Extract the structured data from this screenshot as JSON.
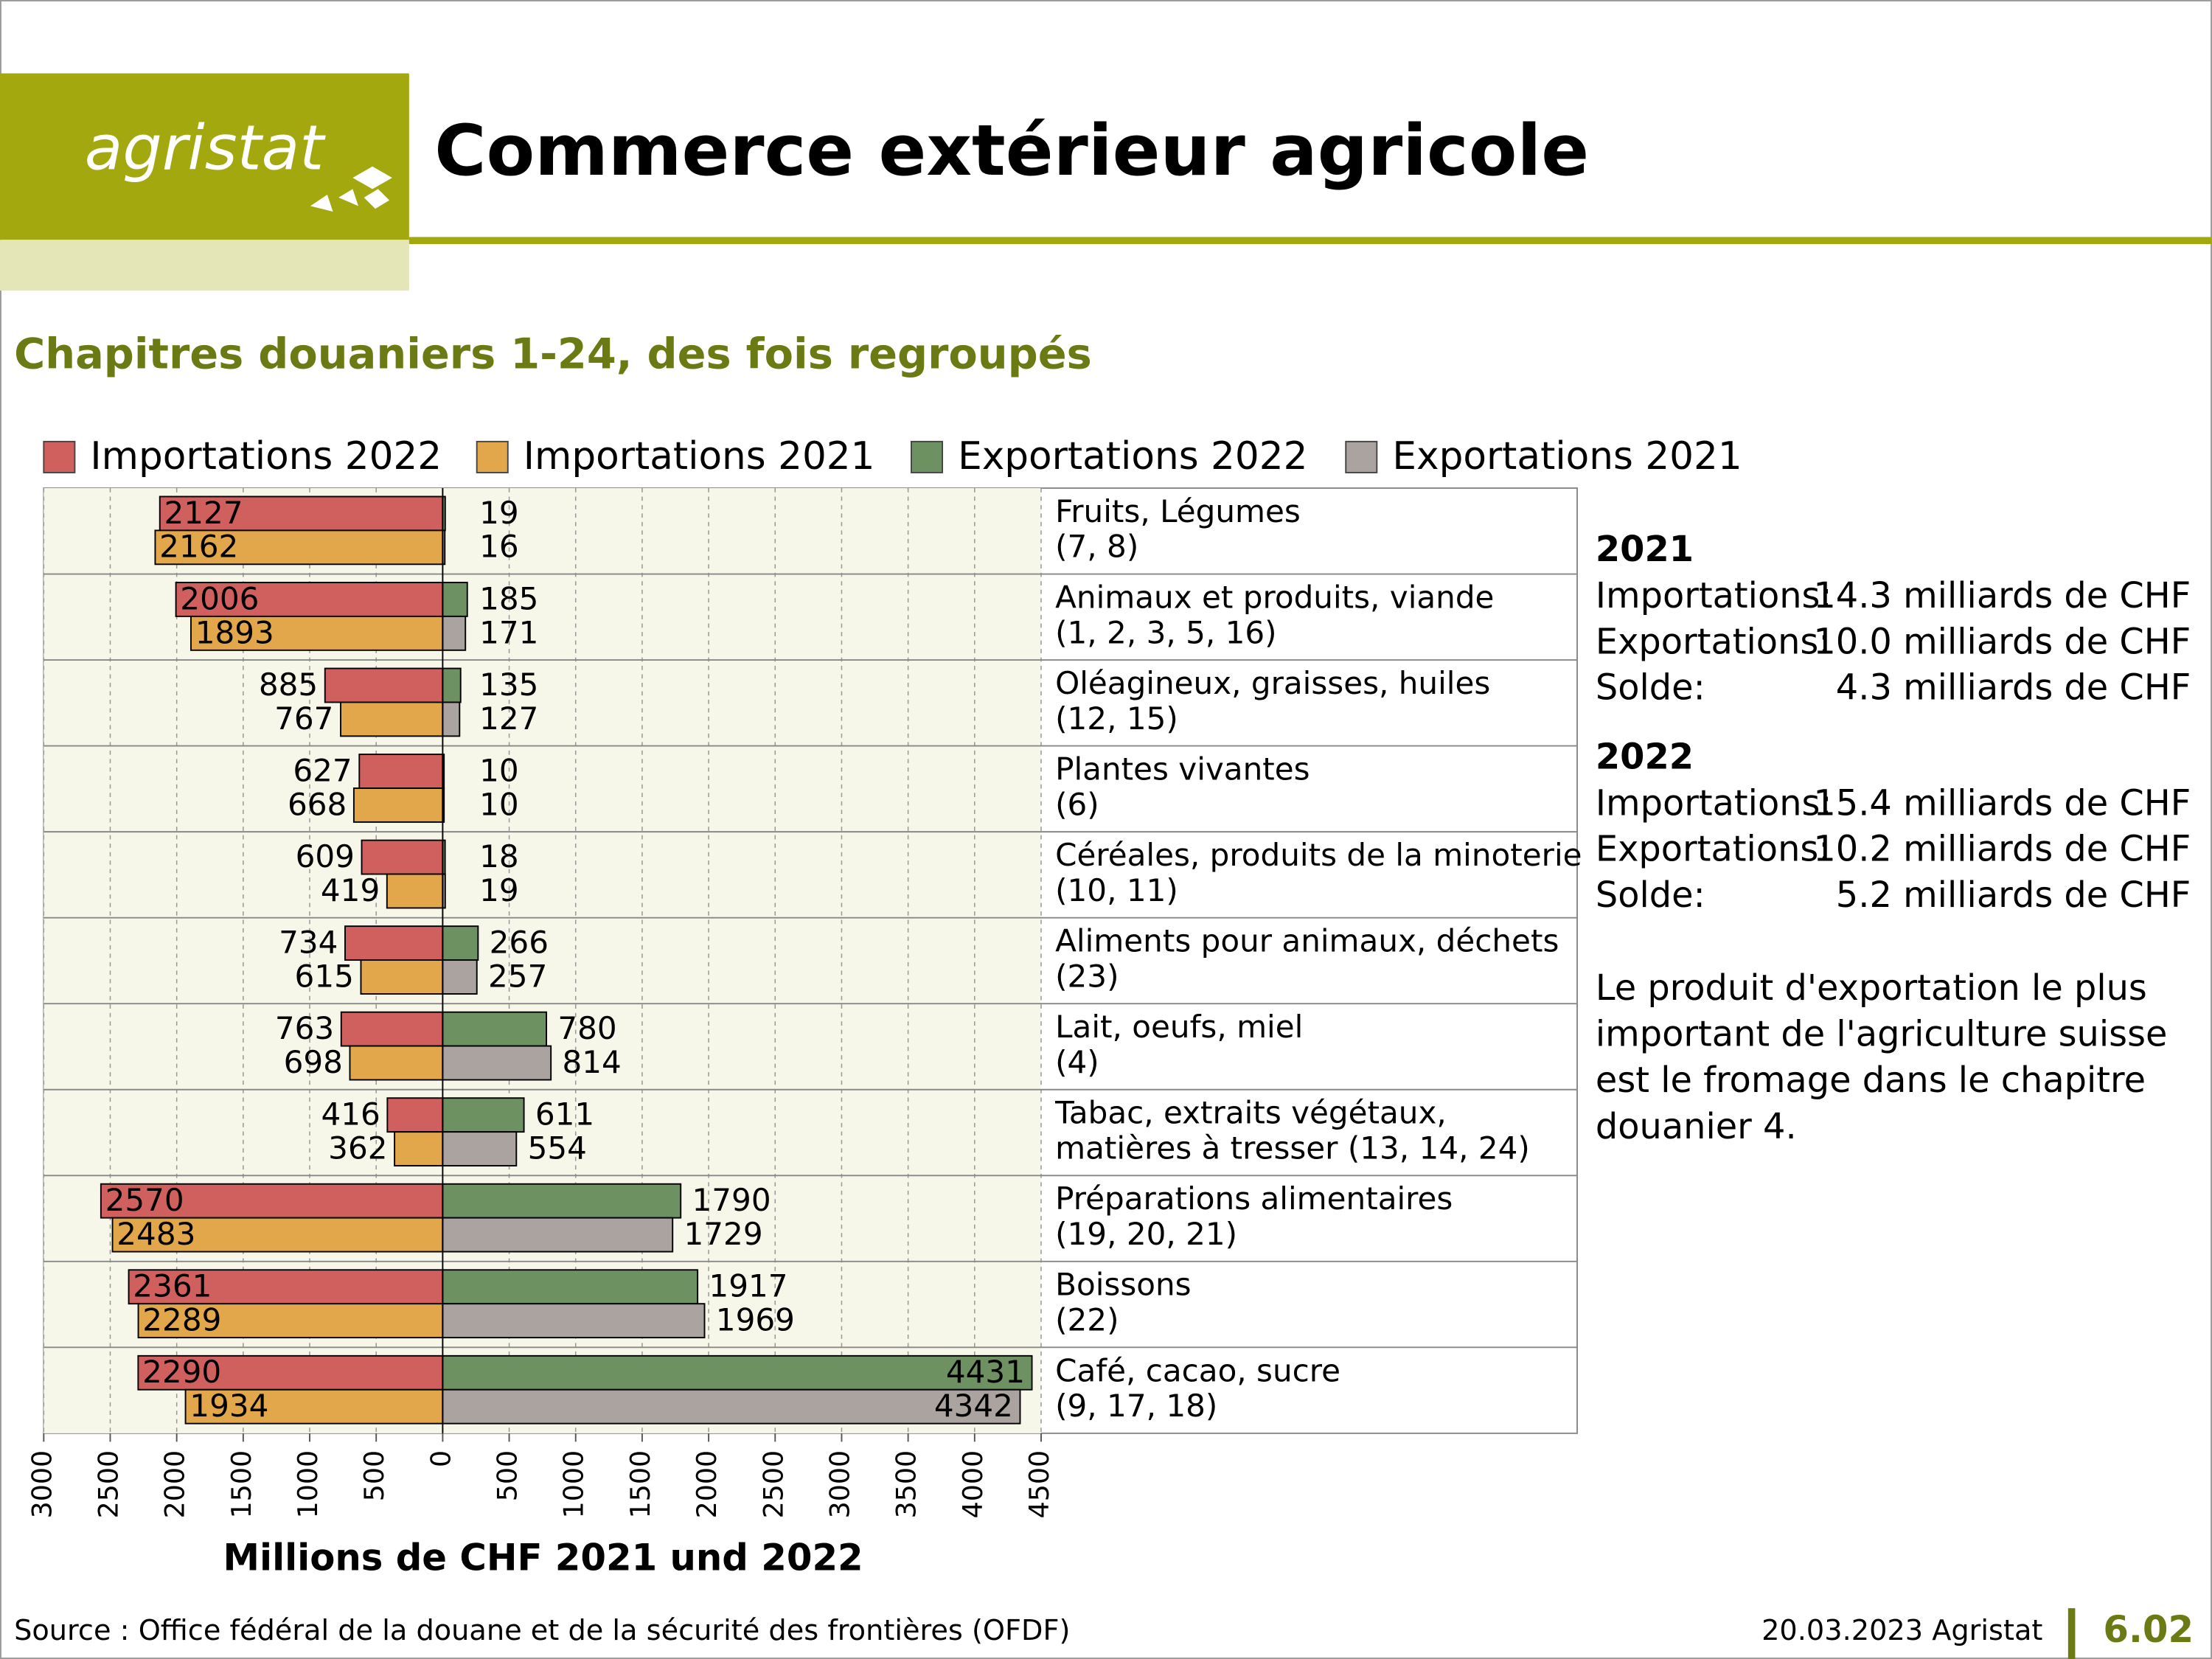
{
  "header": {
    "logo": "agristat",
    "title": "Commerce extérieur agricole"
  },
  "chart_data": {
    "type": "bar",
    "orientation": "horizontal",
    "subtitle": "Chapitres douaniers 1-24, des fois regroupés",
    "x_label": "Millions de CHF 2021 und 2022",
    "categories": [
      [
        "Fruits, Légumes",
        "(7, 8)"
      ],
      [
        "Animaux et produits, viande",
        "(1, 2, 3, 5, 16)"
      ],
      [
        "Oléagineux, graisses, huiles",
        "(12, 15)"
      ],
      [
        "Plantes vivantes",
        "(6)"
      ],
      [
        "Céréales, produits de la minoterie",
        "(10, 11)"
      ],
      [
        "Aliments pour animaux, déchets",
        "(23)"
      ],
      [
        "Lait, oeufs, miel",
        "(4)"
      ],
      [
        "Tabac, extraits végétaux,",
        "matières à tresser (13, 14, 24)"
      ],
      [
        "Préparations alimentaires",
        "(19, 20, 21)"
      ],
      [
        "Boissons",
        "(22)"
      ],
      [
        "Café, cacao, sucre",
        "(9, 17, 18)"
      ]
    ],
    "series": [
      {
        "name": "Importations 2022",
        "color": "#d0605e",
        "values": [
          -2127,
          -2006,
          -885,
          -627,
          -609,
          -734,
          -763,
          -416,
          -2570,
          -2361,
          -2290
        ],
        "value_labels": [
          "2127",
          "2006",
          "885",
          "627",
          "609",
          "734",
          "763",
          "416",
          "2570",
          "2361",
          "2290"
        ]
      },
      {
        "name": "Importations 2021",
        "color": "#e2a74a",
        "values": [
          -2162,
          -1893,
          -767,
          -668,
          -419,
          -615,
          -698,
          -362,
          -2483,
          -2289,
          -1934
        ],
        "value_labels": [
          "2162",
          "1893",
          "767",
          "668",
          "419",
          "615",
          "698",
          "362",
          "2483",
          "2289",
          "1934"
        ]
      },
      {
        "name": "Exportations 2022",
        "color": "#6e9162",
        "values": [
          19,
          185,
          135,
          10,
          18,
          266,
          780,
          611,
          1790,
          1917,
          4431
        ]
      },
      {
        "name": "Exportations 2021",
        "color": "#aaa39f",
        "values": [
          16,
          171,
          127,
          10,
          19,
          257,
          814,
          554,
          1729,
          1969,
          4342
        ]
      }
    ],
    "xlim": [
      -3000,
      4500
    ],
    "xticks": [
      {
        "value": -3000,
        "label": "3000"
      },
      {
        "value": -2500,
        "label": "2500"
      },
      {
        "value": -2000,
        "label": "2000"
      },
      {
        "value": -1500,
        "label": "1500"
      },
      {
        "value": -1000,
        "label": "1000"
      },
      {
        "value": -500,
        "label": "500"
      },
      0,
      500,
      1000,
      1500,
      2000,
      2500,
      3000,
      3500,
      4000,
      4500
    ],
    "grid": true
  },
  "summary": [
    {
      "year": "2021",
      "rows": [
        {
          "label": "Importations:",
          "value": "14.3 milliards de CHF"
        },
        {
          "label": "Exportations:",
          "value": "10.0 milliards de CHF"
        },
        {
          "label": "Solde:",
          "value": "4.3 milliards de CHF"
        }
      ]
    },
    {
      "year": "2022",
      "rows": [
        {
          "label": "Importations:",
          "value": "15.4 milliards de CHF"
        },
        {
          "label": "Exportations:",
          "value": "10.2 milliards de CHF"
        },
        {
          "label": "Solde:",
          "value": "5.2 milliards de CHF"
        }
      ]
    }
  ],
  "note": [
    "Le produit d'exportation le plus",
    "important de l'agriculture suisse",
    "est le fromage dans le chapitre",
    "douanier 4."
  ],
  "footer": {
    "source": "Source : Office fédéral de la douane et de la sécurité des frontières (OFDF)",
    "date": "20.03.2023 Agristat",
    "page": "6.02"
  }
}
